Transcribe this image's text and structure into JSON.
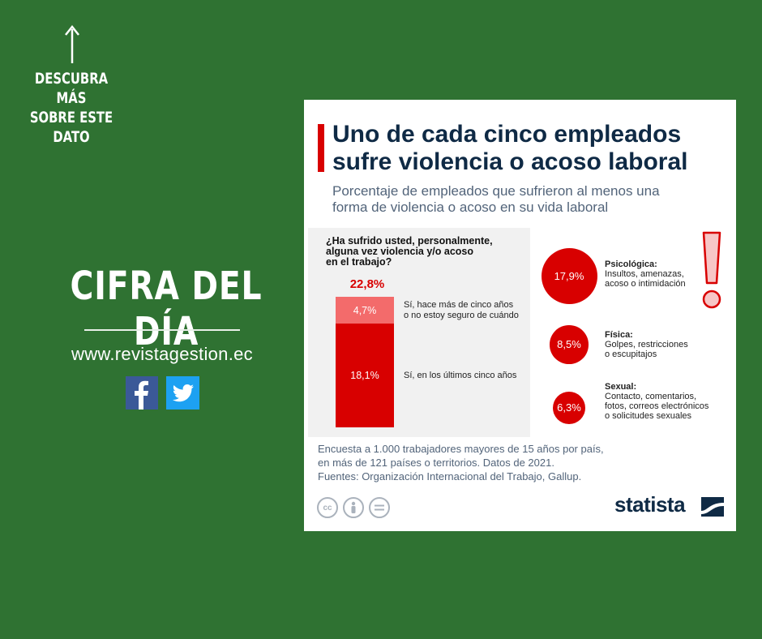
{
  "promo": {
    "discover_lines": [
      "DESCUBRA MÁS",
      "SOBRE ESTE",
      "DATO"
    ],
    "headline": "CIFRA DEL DÍA",
    "website": "www.revistagestion.ec",
    "social_icons": [
      "facebook-icon",
      "twitter-icon"
    ],
    "colors": {
      "background": "#2f7232",
      "facebook": "#3b5998",
      "twitter": "#1da1f2"
    }
  },
  "card": {
    "title_lines": [
      "Uno de cada cinco empleados",
      "sufre violencia o acoso laboral"
    ],
    "subtitle_lines": [
      "Porcentaje de empleados que sufrieron al menos una",
      "forma de violencia o acoso en su vida laboral"
    ],
    "question_lines": [
      "¿Ha sufrido usted, personalmente,",
      "alguna vez violencia y/o acoso",
      "en el trabajo?"
    ],
    "note_lines": [
      "Encuesta a 1.000 trabajadores mayores de 15 años por país,",
      "en más de 121 países o territorios. Datos de 2021.",
      "Fuentes: Organización Internacional del Trabajo, Gallup."
    ],
    "license_icons": [
      "cc-icon",
      "by-icon",
      "nd-icon"
    ],
    "brand": "statista",
    "colors": {
      "accent": "#d80000",
      "light_accent": "#f36b6b",
      "title": "#0f2a45"
    }
  },
  "chart_data": [
    {
      "type": "bar",
      "stacked": true,
      "total_label": "22,8%",
      "total": 22.8,
      "segments": [
        {
          "value": 4.7,
          "value_label": "4,7%",
          "label_lines": [
            "Sí, hace más de cinco años",
            "o no estoy seguro de cuándo"
          ],
          "color": "#f36b6b"
        },
        {
          "value": 18.1,
          "value_label": "18,1%",
          "label_lines": [
            "Sí, en los últimos cinco años"
          ],
          "color": "#d80000"
        }
      ]
    },
    {
      "type": "bubble",
      "items": [
        {
          "value": 17.9,
          "value_label": "17,9%",
          "name": "Psicológica:",
          "desc_lines": [
            "Insultos, amenazas,",
            "acoso o intimidación"
          ]
        },
        {
          "value": 8.5,
          "value_label": "8,5%",
          "name": "Física:",
          "desc_lines": [
            "Golpes, restricciones",
            "o escupitajos"
          ]
        },
        {
          "value": 6.3,
          "value_label": "6,3%",
          "name": "Sexual:",
          "desc_lines": [
            "Contacto, comentarios,",
            "fotos, correos electrónicos",
            "o solicitudes sexuales"
          ]
        }
      ]
    }
  ]
}
